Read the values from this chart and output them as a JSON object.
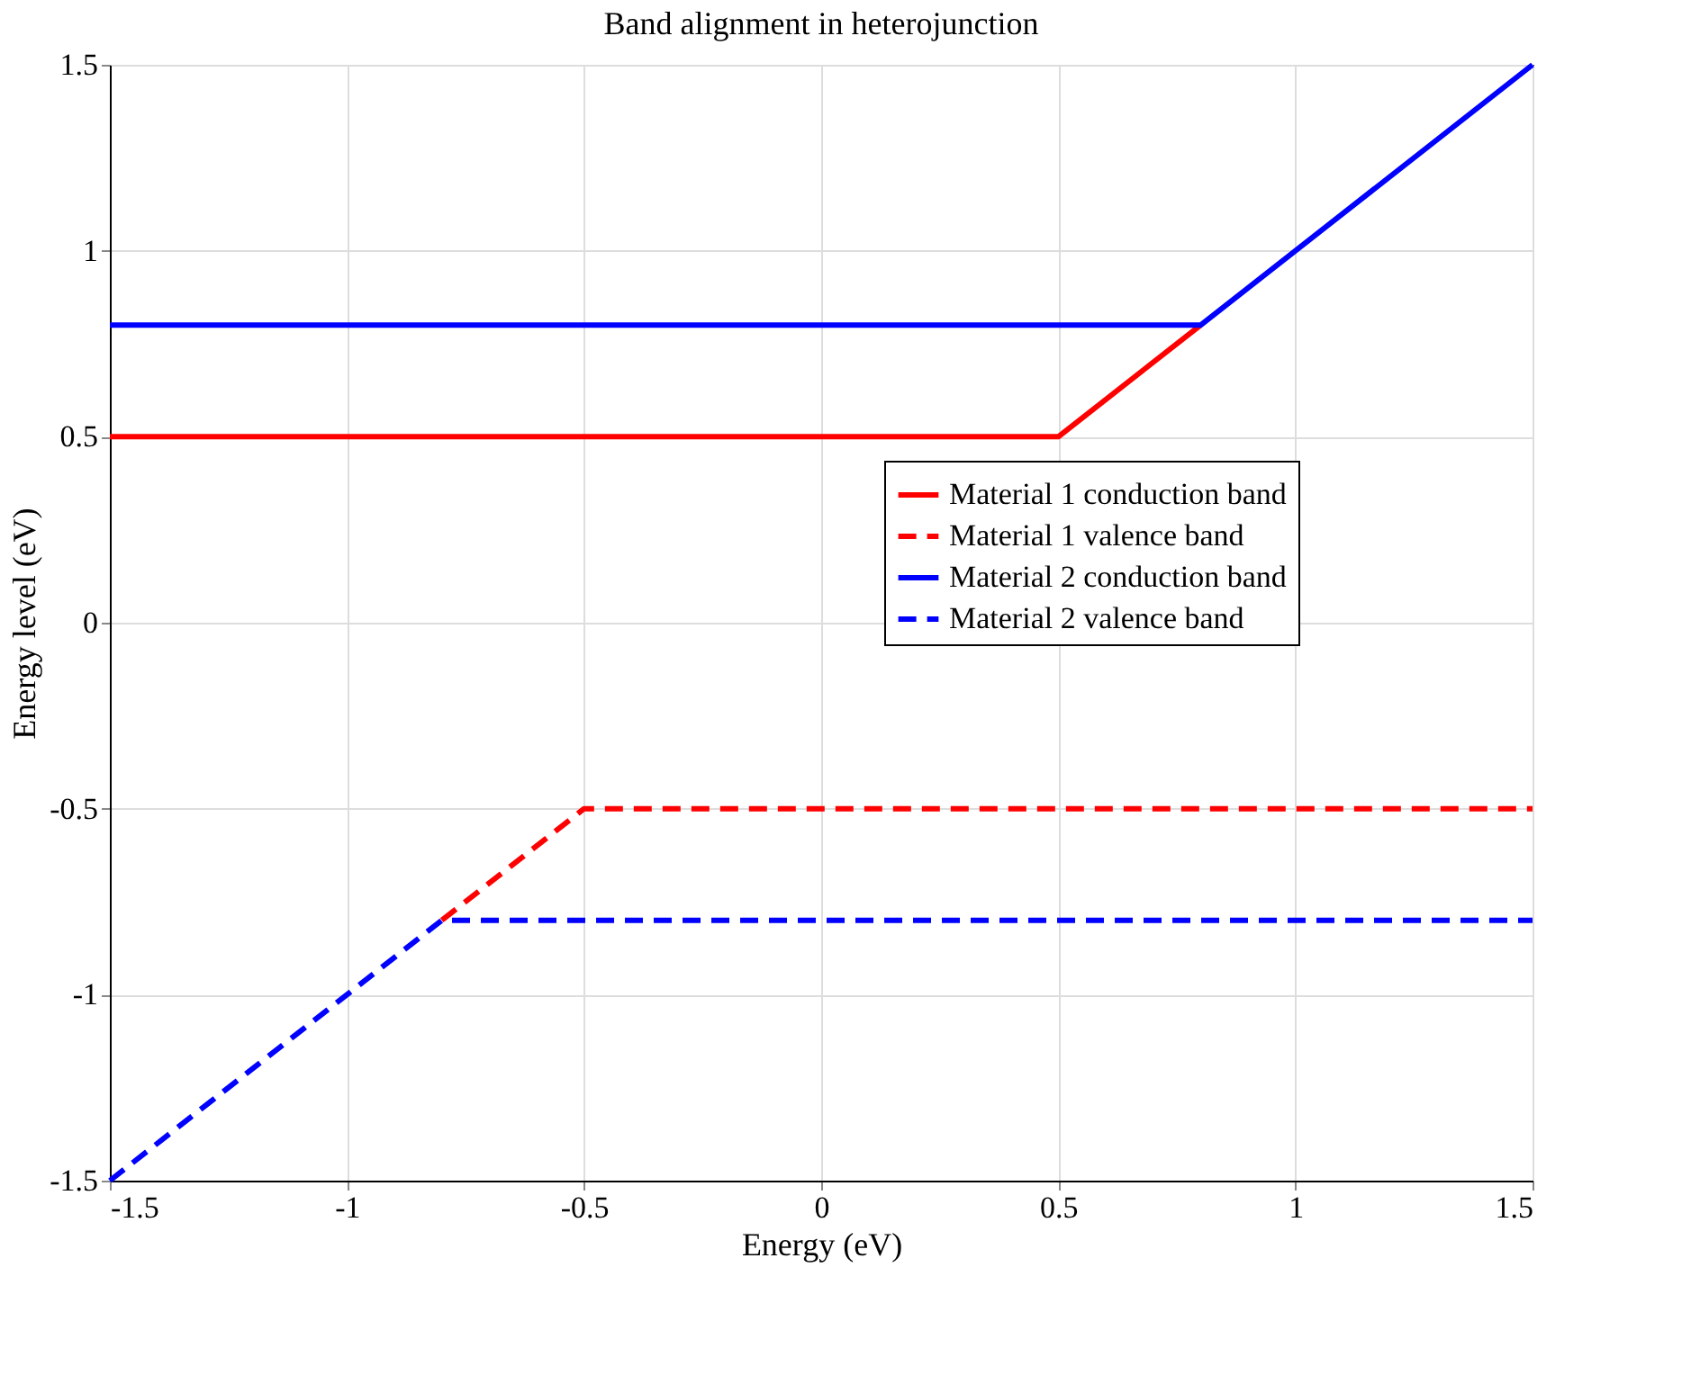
{
  "chart_data": {
    "type": "line",
    "title": "Band alignment in heterojunction",
    "xlabel": "Energy (eV)",
    "ylabel": "Energy level (eV)",
    "xlim": [
      -1.5,
      1.5
    ],
    "ylim": [
      -1.5,
      1.5
    ],
    "xticks": [
      -1.5,
      -1,
      -0.5,
      0,
      0.5,
      1,
      1.5
    ],
    "yticks": [
      -1.5,
      -1,
      -0.5,
      0,
      0.5,
      1,
      1.5
    ],
    "grid": true,
    "legend": "right",
    "marker": "none",
    "series": [
      {
        "name": "Material 1 conduction band",
        "color": "#ff0000",
        "line_style": "solid",
        "x": [
          -1.5,
          0.5,
          0.8
        ],
        "values": [
          0.5,
          0.5,
          0.8
        ]
      },
      {
        "name": "Material 1 valence band",
        "color": "#ff0000",
        "line_style": "dashed",
        "x": [
          -0.8,
          -0.5,
          1.5
        ],
        "values": [
          -0.8,
          -0.5,
          -0.5
        ]
      },
      {
        "name": "Material 2 conduction band",
        "color": "#0000ff",
        "line_style": "solid",
        "x": [
          -1.5,
          0.8,
          1.5
        ],
        "values": [
          0.8,
          0.8,
          1.5
        ]
      },
      {
        "name": "Material 2 valence band",
        "color": "#0000ff",
        "line_style": "dashed",
        "x": [
          -1.5,
          -0.8,
          1.5
        ],
        "values": [
          -1.5,
          -0.8,
          -0.8
        ]
      }
    ]
  }
}
